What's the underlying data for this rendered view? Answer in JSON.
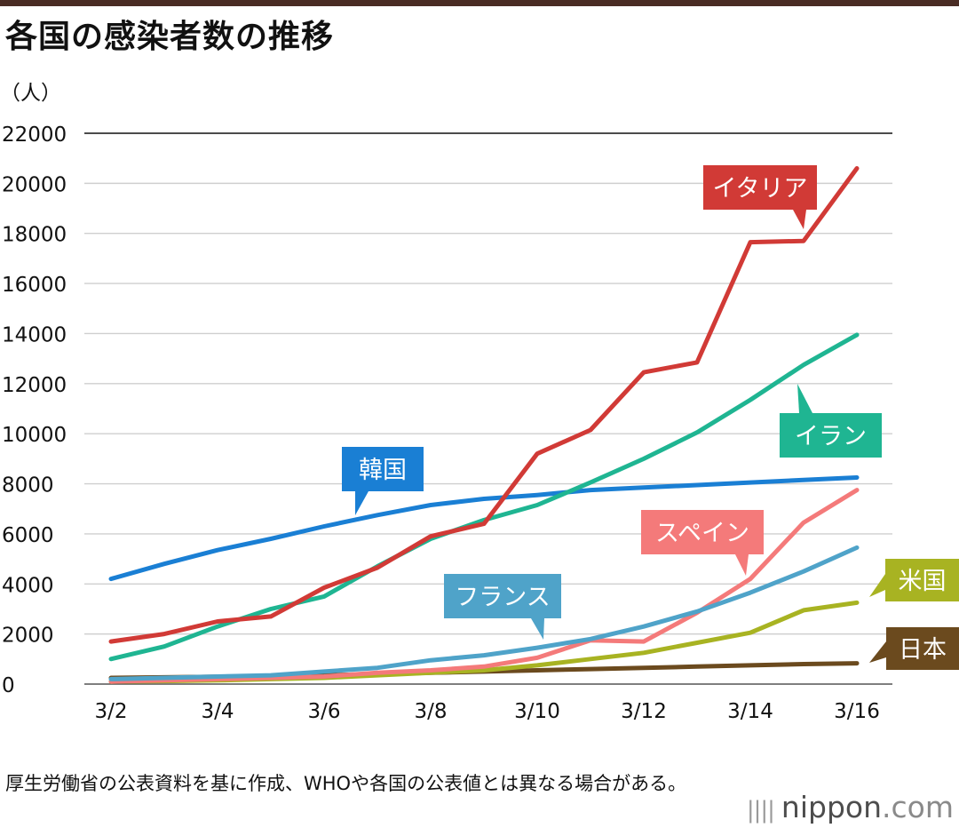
{
  "title": "各国の感染者数の推移",
  "note": "厚生労働省の公表資料を基に作成、WHOや各国の公表値とは異なる場合がある。",
  "logo": {
    "prefix": "nippon",
    "suffix": ".com"
  },
  "chart_data": {
    "type": "line",
    "title": "各国の感染者数の推移",
    "ylabel": "（人）",
    "xlabel": "",
    "ylim": [
      0,
      22000
    ],
    "yticks": [
      0,
      2000,
      4000,
      6000,
      8000,
      10000,
      12000,
      14000,
      16000,
      18000,
      20000,
      22000
    ],
    "x": [
      "3/2",
      "3/3",
      "3/4",
      "3/5",
      "3/6",
      "3/7",
      "3/8",
      "3/9",
      "3/10",
      "3/11",
      "3/12",
      "3/13",
      "3/14",
      "3/15",
      "3/16"
    ],
    "xtick_labels": [
      "3/2",
      "3/4",
      "3/6",
      "3/8",
      "3/10",
      "3/12",
      "3/14",
      "3/16"
    ],
    "grid": true,
    "series": [
      {
        "name": "イタリア",
        "color": "#d13a36",
        "values": [
          1700,
          2000,
          2500,
          2700,
          3850,
          4650,
          5900,
          6400,
          9200,
          10150,
          12450,
          12850,
          17650,
          17700,
          20600
        ]
      },
      {
        "name": "イラン",
        "color": "#1fb592",
        "values": [
          1000,
          1500,
          2300,
          3000,
          3500,
          4700,
          5800,
          6550,
          7150,
          8050,
          9000,
          10050,
          11350,
          12750,
          13950
        ]
      },
      {
        "name": "韓国",
        "color": "#1a7fd4",
        "values": [
          4200,
          4800,
          5350,
          5800,
          6300,
          6750,
          7150,
          7400,
          7550,
          7750,
          7850,
          7950,
          8050,
          8150,
          8250
        ]
      },
      {
        "name": "スペイン",
        "color": "#f47a7a",
        "values": [
          100,
          150,
          200,
          250,
          300,
          450,
          550,
          700,
          1050,
          1750,
          1700,
          2850,
          4200,
          6450,
          7750
        ]
      },
      {
        "name": "フランス",
        "color": "#4fa3c9",
        "values": [
          200,
          250,
          300,
          350,
          500,
          650,
          950,
          1150,
          1450,
          1800,
          2300,
          2900,
          3650,
          4500,
          5450
        ]
      },
      {
        "name": "米国",
        "color": "#a8b322",
        "values": [
          100,
          120,
          150,
          200,
          250,
          350,
          450,
          550,
          750,
          1000,
          1250,
          1650,
          2050,
          2950,
          3250
        ]
      },
      {
        "name": "日本",
        "color": "#6b4a1e",
        "values": [
          250,
          270,
          290,
          310,
          350,
          400,
          450,
          500,
          550,
          600,
          650,
          700,
          750,
          800,
          830
        ]
      }
    ]
  }
}
